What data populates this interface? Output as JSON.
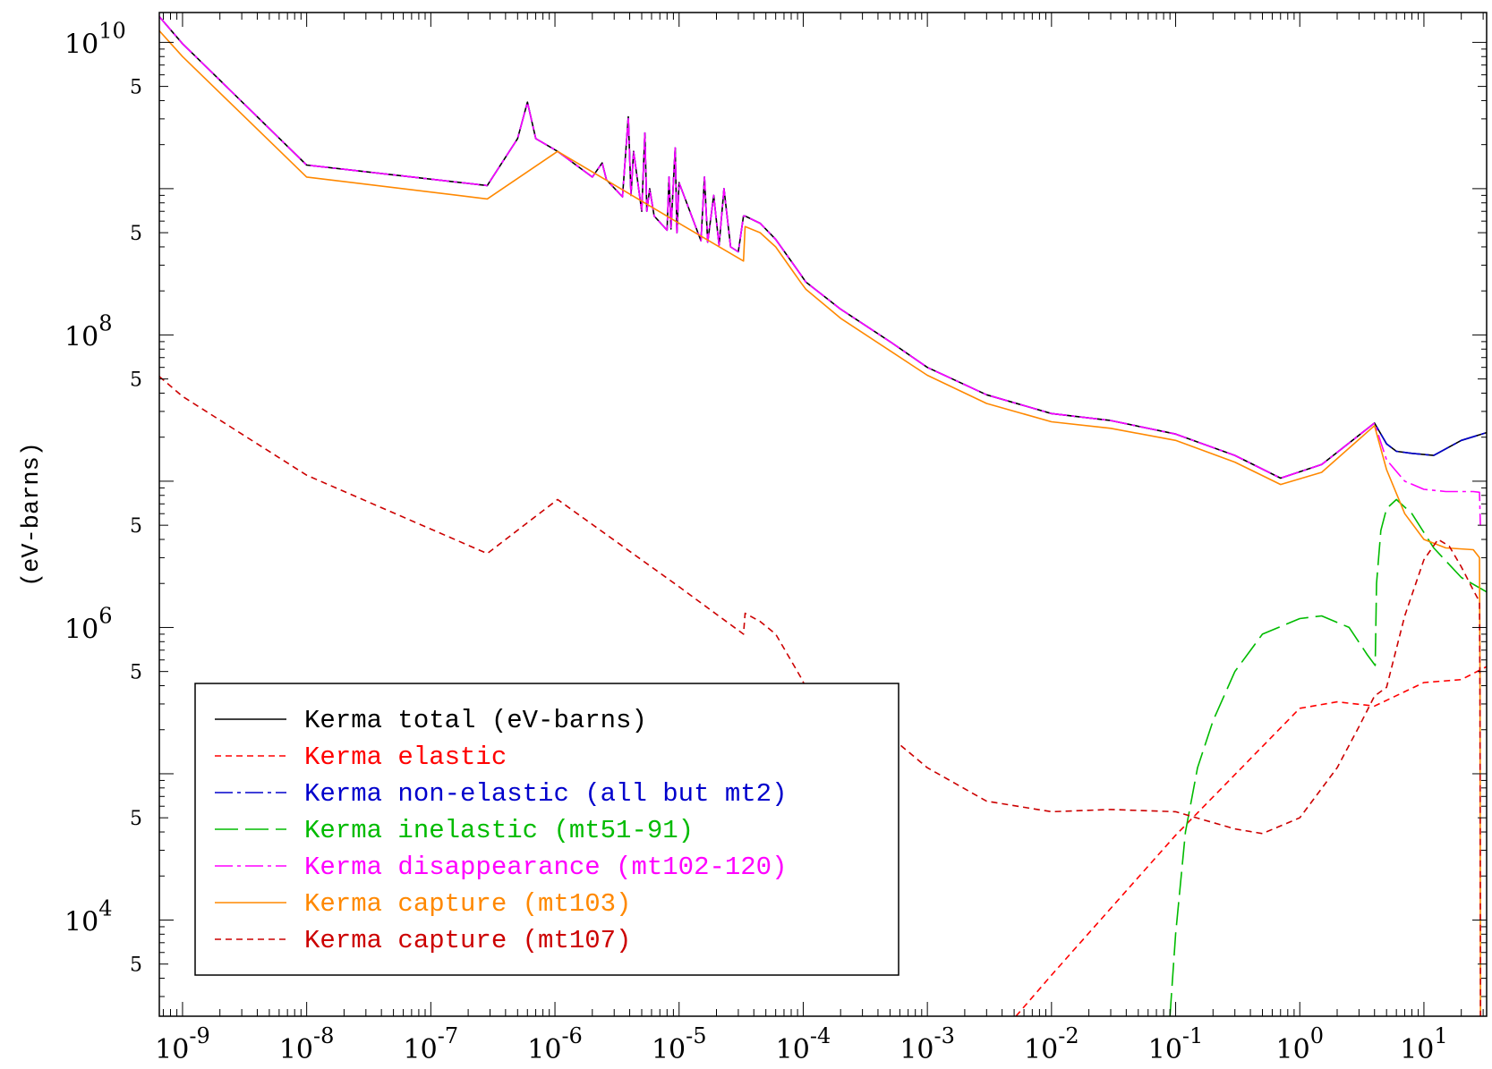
{
  "chart_data": {
    "type": "line",
    "title": "",
    "xlabel": "",
    "ylabel": "(eV-barns)",
    "x_scale": "log",
    "y_scale": "log",
    "xlim": [
      6.5e-10,
      32
    ],
    "ylim": [
      2200.0,
      16000000000.0
    ],
    "x_tick_values": [
      1e-09,
      1e-08,
      1e-07,
      1e-06,
      1e-05,
      0.0001,
      0.001,
      0.01,
      0.1,
      1.0,
      10.0
    ],
    "x_tick_labels": [
      {
        "base": "10",
        "exp": "-9"
      },
      {
        "base": "10",
        "exp": "-8"
      },
      {
        "base": "10",
        "exp": "-7"
      },
      {
        "base": "10",
        "exp": "-6"
      },
      {
        "base": "10",
        "exp": "-5"
      },
      {
        "base": "10",
        "exp": "-4"
      },
      {
        "base": "10",
        "exp": "-3"
      },
      {
        "base": "10",
        "exp": "-2"
      },
      {
        "base": "10",
        "exp": "-1"
      },
      {
        "base": "10",
        "exp": "0"
      },
      {
        "base": "10",
        "exp": "1"
      }
    ],
    "y_major_ticks": [
      {
        "value": 10000000000.0,
        "base": "10",
        "exp": "10"
      },
      {
        "value": 100000000.0,
        "base": "10",
        "exp": "8"
      },
      {
        "value": 1000000.0,
        "base": "10",
        "exp": "6"
      },
      {
        "value": 10000.0,
        "base": "10",
        "exp": "4"
      }
    ],
    "y_five_ticks": [
      5000000000.0,
      500000000.0,
      50000000.0,
      5000000.0,
      500000.0,
      50000.0,
      5000.0
    ],
    "y_five_label": "5",
    "y_decade_ticks": [
      1000000000.0,
      10000000.0,
      100000.0
    ],
    "legend": {
      "position": "lower-left",
      "entries": [
        {
          "label": "Kerma total  (eV-barns)",
          "color": "#000000",
          "dash": "solid"
        },
        {
          "label": "Kerma elastic",
          "color": "#ff0000",
          "dash": "short"
        },
        {
          "label": "Kerma non-elastic (all but mt2)",
          "color": "#0000cc",
          "dash": "dashdot"
        },
        {
          "label": "Kerma inelastic (mt51-91)",
          "color": "#00bb00",
          "dash": "long"
        },
        {
          "label": "Kerma disappearance (mt102-120)",
          "color": "#ff00ff",
          "dash": "dashdot"
        },
        {
          "label": "Kerma capture (mt103)",
          "color": "#ff8800",
          "dash": "solid"
        },
        {
          "label": "Kerma capture (mt107)",
          "color": "#cc0000",
          "dash": "short"
        }
      ]
    },
    "series": [
      {
        "name": "Kerma total  (eV-barns)",
        "color": "#000000",
        "x": [
          6.5e-10,
          1e-09,
          1e-08,
          2.85e-07,
          5e-07,
          6e-07,
          7e-07,
          1.05e-06,
          2e-06,
          2.4e-06,
          2.6e-06,
          3.5e-06,
          3.9e-06,
          4.1e-06,
          4.3e-06,
          5e-06,
          5.3e-06,
          5.5e-06,
          5.8e-06,
          6.3e-06,
          8e-06,
          8.3e-06,
          8.6e-06,
          9.3e-06,
          9.6e-06,
          1e-05,
          1.5e-05,
          1.6e-05,
          1.7e-05,
          1.9e-05,
          2.1e-05,
          2.3e-05,
          2.6e-05,
          3e-05,
          3.3e-05,
          3.4e-05,
          4.5e-05,
          6e-05,
          9.5e-05,
          0.000105,
          0.0002,
          0.0005,
          0.001,
          0.003,
          0.01,
          0.03,
          0.1,
          0.3,
          0.7,
          1.5,
          4,
          5,
          6,
          8,
          12,
          20,
          32
        ],
        "y": [
          15000000000.0,
          9800000000.0,
          1450000000.0,
          1050000000.0,
          2200000000.0,
          3900000000.0,
          2200000000.0,
          1800000000.0,
          1200000000.0,
          1500000000.0,
          1150000000.0,
          880000000.0,
          3100000000.0,
          900000000.0,
          1800000000.0,
          700000000.0,
          2400000000.0,
          700000000.0,
          1000000000.0,
          650000000.0,
          520000000.0,
          1200000000.0,
          530000000.0,
          1900000000.0,
          500000000.0,
          1100000000.0,
          440000000.0,
          1200000000.0,
          430000000.0,
          900000000.0,
          410000000.0,
          1000000000.0,
          400000000.0,
          370000000.0,
          650000000.0,
          650000000.0,
          580000000.0,
          450000000.0,
          260000000.0,
          230000000.0,
          150000000.0,
          90000000.0,
          60000000.0,
          39000000.0,
          29000000.0,
          26000000.0,
          21000000.0,
          15000000.0,
          10500000.0,
          13000000.0,
          25000000.0,
          18000000.0,
          16000000.0,
          15500000.0,
          15000000.0,
          19000000.0,
          21500000.0
        ]
      },
      {
        "name": "Kerma elastic",
        "color": "#ff0000",
        "x": [
          0.0035,
          0.01,
          0.1,
          1,
          2,
          4,
          10,
          20,
          32
        ],
        "y": [
          1500.0,
          4200.0,
          38000.0,
          280000.0,
          310000.0,
          290000.0,
          420000.0,
          440000.0,
          540000.0
        ]
      },
      {
        "name": "Kerma non-elastic (all but mt2)",
        "color": "#0000cc",
        "x": [
          6.5e-10,
          1e-09,
          1e-08,
          2.85e-07,
          5e-07,
          6e-07,
          7e-07,
          1.05e-06,
          2e-06,
          2.4e-06,
          2.6e-06,
          3.5e-06,
          3.9e-06,
          4.1e-06,
          4.3e-06,
          5e-06,
          5.3e-06,
          5.5e-06,
          5.8e-06,
          6.3e-06,
          8e-06,
          8.3e-06,
          8.6e-06,
          9.3e-06,
          9.6e-06,
          1e-05,
          1.5e-05,
          1.6e-05,
          1.7e-05,
          1.9e-05,
          2.1e-05,
          2.3e-05,
          2.6e-05,
          3e-05,
          3.3e-05,
          3.4e-05,
          4.5e-05,
          6e-05,
          9.5e-05,
          0.000105,
          0.0002,
          0.0005,
          0.001,
          0.003,
          0.01,
          0.03,
          0.1,
          0.3,
          0.7,
          1.5,
          4,
          5,
          6,
          8,
          12,
          20,
          32
        ],
        "y": [
          15000000000.0,
          9800000000.0,
          1450000000.0,
          1050000000.0,
          2200000000.0,
          3900000000.0,
          2200000000.0,
          1800000000.0,
          1200000000.0,
          1500000000.0,
          1150000000.0,
          880000000.0,
          3100000000.0,
          900000000.0,
          1800000000.0,
          700000000.0,
          2400000000.0,
          700000000.0,
          1000000000.0,
          650000000.0,
          520000000.0,
          1200000000.0,
          530000000.0,
          1900000000.0,
          500000000.0,
          1100000000.0,
          440000000.0,
          1200000000.0,
          430000000.0,
          900000000.0,
          410000000.0,
          1000000000.0,
          400000000.0,
          370000000.0,
          650000000.0,
          650000000.0,
          580000000.0,
          450000000.0,
          260000000.0,
          230000000.0,
          150000000.0,
          90000000.0,
          60000000.0,
          39000000.0,
          29000000.0,
          26000000.0,
          21000000.0,
          15000000.0,
          10500000.0,
          13000000.0,
          25000000.0,
          18000000.0,
          16000000.0,
          15500000.0,
          15000000.0,
          19000000.0,
          21500000.0
        ]
      },
      {
        "name": "Kerma inelastic (mt51-91)",
        "color": "#00bb00",
        "x": [
          0.09,
          0.1,
          0.12,
          0.15,
          0.2,
          0.3,
          0.5,
          1,
          1.5,
          2.5,
          3.5,
          4.05,
          4.15,
          4.5,
          5,
          6,
          8,
          12,
          20,
          32
        ],
        "y": [
          2200.0,
          8000.0,
          40000.0,
          110000.0,
          230000.0,
          500000.0,
          900000.0,
          1150000.0,
          1200000.0,
          1000000.0,
          650000.0,
          550000.0,
          2000000.0,
          4600000.0,
          6500000.0,
          7500000.0,
          6000000.0,
          3500000.0,
          2200000.0,
          1750000.0
        ]
      },
      {
        "name": "Kerma disappearance (mt102-120)",
        "color": "#ff00ff",
        "x": [
          6.5e-10,
          1e-09,
          1e-08,
          2.85e-07,
          5e-07,
          6e-07,
          7e-07,
          1.05e-06,
          2e-06,
          2.4e-06,
          2.6e-06,
          3.5e-06,
          3.9e-06,
          4.1e-06,
          4.3e-06,
          5e-06,
          5.3e-06,
          5.5e-06,
          5.8e-06,
          6.3e-06,
          8e-06,
          8.3e-06,
          8.6e-06,
          9.3e-06,
          9.6e-06,
          1e-05,
          1.5e-05,
          1.6e-05,
          1.7e-05,
          1.9e-05,
          2.1e-05,
          2.3e-05,
          2.6e-05,
          3e-05,
          3.3e-05,
          3.4e-05,
          4.5e-05,
          6e-05,
          9.5e-05,
          0.000105,
          0.0002,
          0.0005,
          0.001,
          0.003,
          0.01,
          0.03,
          0.1,
          0.3,
          0.7,
          1.5,
          4,
          5,
          7,
          10,
          15,
          25,
          28,
          28.5
        ],
        "y": [
          15000000000.0,
          9800000000.0,
          1450000000.0,
          1050000000.0,
          2200000000.0,
          3900000000.0,
          2200000000.0,
          1800000000.0,
          1200000000.0,
          1500000000.0,
          1150000000.0,
          880000000.0,
          3100000000.0,
          900000000.0,
          1800000000.0,
          700000000.0,
          2400000000.0,
          700000000.0,
          1000000000.0,
          650000000.0,
          520000000.0,
          1200000000.0,
          530000000.0,
          1900000000.0,
          500000000.0,
          1100000000.0,
          440000000.0,
          1200000000.0,
          430000000.0,
          900000000.0,
          410000000.0,
          1000000000.0,
          400000000.0,
          370000000.0,
          650000000.0,
          650000000.0,
          580000000.0,
          450000000.0,
          260000000.0,
          230000000.0,
          150000000.0,
          90000000.0,
          60000000.0,
          39000000.0,
          29000000.0,
          26000000.0,
          21000000.0,
          15000000.0,
          10500000.0,
          13000000.0,
          25000000.0,
          14000000.0,
          10000000.0,
          8800000.0,
          8500000.0,
          8500000.0,
          8400000.0,
          5000000.0
        ]
      },
      {
        "name": "Kerma capture (mt103)",
        "color": "#ff8800",
        "x": [
          6.5e-10,
          1e-09,
          1e-08,
          2.85e-07,
          1.05e-06,
          1e-05,
          3.3e-05,
          3.4e-05,
          4.5e-05,
          6e-05,
          9.5e-05,
          0.000105,
          0.0002,
          0.0005,
          0.001,
          0.003,
          0.01,
          0.03,
          0.1,
          0.3,
          0.7,
          1.5,
          4,
          5,
          7,
          10,
          15,
          25,
          28,
          28.3,
          28.6
        ],
        "y": [
          12000000000.0,
          8000000000.0,
          1200000000.0,
          850000000.0,
          1800000000.0,
          580000000.0,
          320000000.0,
          550000000.0,
          500000000.0,
          400000000.0,
          230000000.0,
          205000000.0,
          130000000.0,
          78000000.0,
          53000000.0,
          34000000.0,
          25500000.0,
          23000000.0,
          19000000.0,
          13500000.0,
          9500000.0,
          11500000.0,
          24000000.0,
          12000000.0,
          6000000.0,
          4000000.0,
          3500000.0,
          3400000.0,
          3000000.0,
          500000.0,
          1500.0
        ]
      },
      {
        "name": "Kerma capture (mt107)",
        "color": "#cc0000",
        "x": [
          6.5e-10,
          1e-09,
          1e-08,
          2.85e-07,
          1.05e-06,
          1e-05,
          3.3e-05,
          3.4e-05,
          4.5e-05,
          6e-05,
          9.5e-05,
          0.000105,
          0.0002,
          0.0005,
          0.001,
          0.003,
          0.01,
          0.03,
          0.1,
          0.3,
          0.5,
          1,
          2,
          3,
          4,
          5,
          7,
          10,
          13,
          16,
          20,
          25,
          28,
          28.3,
          28.6
        ],
        "y": [
          52000000.0,
          38000000.0,
          11000000.0,
          3200000.0,
          7500000.0,
          1900000.0,
          900000.0,
          1250000.0,
          1100000.0,
          900000.0,
          460000.0,
          390000.0,
          290000.0,
          180000.0,
          110000.0,
          65000.0,
          55000.0,
          57000.0,
          55000.0,
          42000.0,
          39000.0,
          50000.0,
          110000.0,
          210000.0,
          340000.0,
          390000.0,
          1200000.0,
          2900000.0,
          4000000.0,
          3600000.0,
          2600000.0,
          1800000.0,
          1500000.0,
          300000.0,
          1500.0
        ]
      }
    ]
  }
}
